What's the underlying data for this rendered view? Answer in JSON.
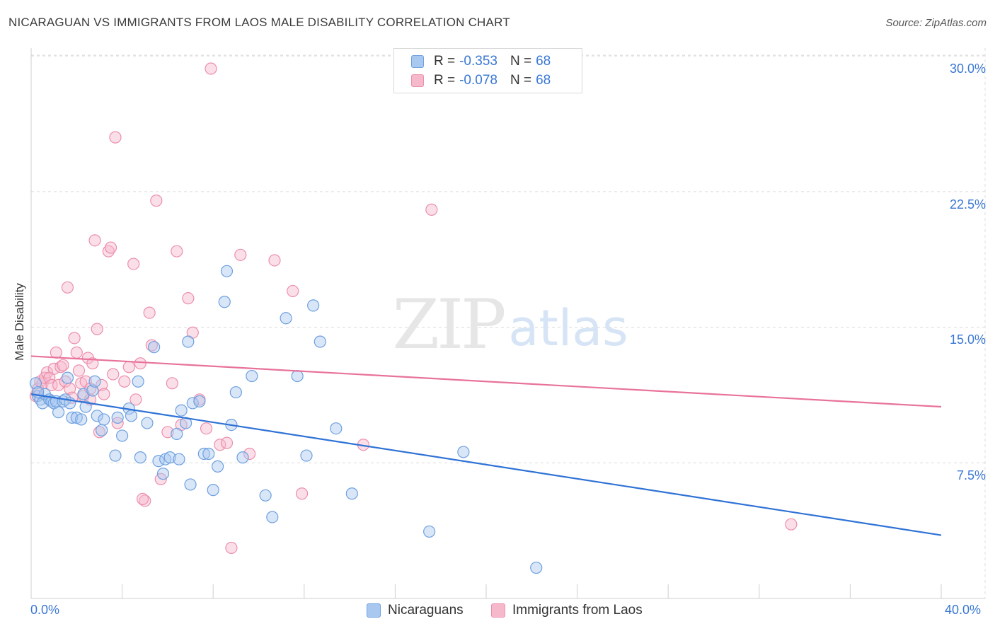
{
  "title": "NICARAGUAN VS IMMIGRANTS FROM LAOS MALE DISABILITY CORRELATION CHART",
  "source": "Source: ZipAtlas.com",
  "watermark": {
    "zip": "ZIP",
    "atlas": "atlas"
  },
  "colors": {
    "blue_fill": "#a9c8f0",
    "blue_stroke": "#6ea0e0",
    "blue_line": "#2f72d6",
    "pink_fill": "#f6b8cb",
    "pink_stroke": "#ec8fab",
    "pink_line": "#e8729a",
    "axis_text": "#3a78d4",
    "grid": "#dcdcdc"
  },
  "legend": {
    "series1": {
      "r_label": "R =",
      "r_value": "-0.353",
      "n_label": "N =",
      "n_value": "68"
    },
    "series2": {
      "r_label": "R =",
      "r_value": "-0.078",
      "n_label": "N =",
      "n_value": "68"
    }
  },
  "chart_data": {
    "type": "scatter",
    "title": "NICARAGUAN VS IMMIGRANTS FROM LAOS MALE DISABILITY CORRELATION CHART",
    "xlabel": "",
    "ylabel": "Male Disability",
    "xlim": [
      0,
      40
    ],
    "ylim": [
      0,
      31
    ],
    "x_tick_labels": [
      "0.0%",
      "40.0%"
    ],
    "y_ticks": [
      7.5,
      15.0,
      22.5,
      30.0
    ],
    "y_tick_labels": [
      "7.5%",
      "15.0%",
      "22.5%",
      "30.0%"
    ],
    "grid": true,
    "legend_position": "top-center",
    "series": [
      {
        "name": "Nicaraguans",
        "color": "blue",
        "trend": {
          "x": [
            0,
            40
          ],
          "y": [
            11.3,
            3.5
          ]
        },
        "points": [
          [
            0.2,
            11.9
          ],
          [
            0.3,
            11.2
          ],
          [
            0.4,
            11.0
          ],
          [
            0.5,
            10.8
          ],
          [
            0.6,
            11.3
          ],
          [
            0.8,
            11.0
          ],
          [
            0.9,
            10.9
          ],
          [
            1.0,
            10.8
          ],
          [
            1.1,
            10.9
          ],
          [
            1.2,
            10.3
          ],
          [
            1.4,
            10.9
          ],
          [
            1.5,
            11.0
          ],
          [
            1.6,
            12.2
          ],
          [
            1.7,
            10.8
          ],
          [
            1.8,
            10.0
          ],
          [
            2.0,
            10.0
          ],
          [
            2.3,
            11.3
          ],
          [
            2.4,
            10.6
          ],
          [
            2.7,
            11.5
          ],
          [
            2.8,
            12.0
          ],
          [
            2.9,
            10.1
          ],
          [
            3.1,
            9.3
          ],
          [
            3.2,
            9.9
          ],
          [
            3.7,
            7.9
          ],
          [
            3.8,
            10.0
          ],
          [
            4.3,
            10.5
          ],
          [
            4.4,
            10.1
          ],
          [
            4.7,
            12.0
          ],
          [
            4.8,
            7.8
          ],
          [
            5.1,
            9.7
          ],
          [
            5.4,
            13.9
          ],
          [
            5.6,
            7.6
          ],
          [
            5.8,
            6.9
          ],
          [
            5.9,
            7.7
          ],
          [
            6.1,
            7.8
          ],
          [
            6.4,
            9.1
          ],
          [
            6.6,
            10.4
          ],
          [
            6.8,
            9.7
          ],
          [
            6.9,
            14.2
          ],
          [
            7.0,
            6.3
          ],
          [
            7.1,
            10.8
          ],
          [
            7.4,
            10.9
          ],
          [
            7.6,
            8.0
          ],
          [
            7.8,
            8.0
          ],
          [
            8.0,
            6.0
          ],
          [
            8.2,
            7.3
          ],
          [
            8.5,
            16.4
          ],
          [
            8.6,
            18.1
          ],
          [
            8.8,
            9.6
          ],
          [
            9.0,
            11.4
          ],
          [
            9.3,
            7.8
          ],
          [
            9.7,
            12.3
          ],
          [
            10.3,
            5.7
          ],
          [
            10.6,
            4.5
          ],
          [
            11.2,
            15.5
          ],
          [
            11.7,
            12.3
          ],
          [
            12.1,
            7.9
          ],
          [
            12.4,
            16.2
          ],
          [
            12.7,
            14.2
          ],
          [
            13.4,
            9.4
          ],
          [
            14.1,
            5.8
          ],
          [
            17.5,
            3.7
          ],
          [
            19.0,
            8.1
          ],
          [
            22.2,
            1.7
          ],
          [
            0.3,
            11.4
          ],
          [
            2.2,
            9.9
          ],
          [
            4.0,
            9.0
          ],
          [
            6.5,
            7.7
          ]
        ]
      },
      {
        "name": "Immigrants from Laos",
        "color": "pink",
        "trend": {
          "x": [
            0,
            40
          ],
          "y": [
            13.4,
            10.6
          ]
        },
        "points": [
          [
            0.2,
            11.2
          ],
          [
            0.3,
            11.6
          ],
          [
            0.4,
            12.0
          ],
          [
            0.5,
            11.9
          ],
          [
            0.6,
            12.2
          ],
          [
            0.7,
            12.5
          ],
          [
            0.8,
            12.2
          ],
          [
            0.9,
            11.8
          ],
          [
            1.0,
            12.7
          ],
          [
            1.1,
            13.6
          ],
          [
            1.2,
            11.8
          ],
          [
            1.3,
            12.8
          ],
          [
            1.4,
            12.9
          ],
          [
            1.5,
            12.0
          ],
          [
            1.6,
            17.2
          ],
          [
            1.7,
            11.6
          ],
          [
            1.8,
            11.1
          ],
          [
            1.9,
            14.4
          ],
          [
            2.0,
            13.6
          ],
          [
            2.1,
            12.6
          ],
          [
            2.2,
            11.9
          ],
          [
            2.3,
            11.2
          ],
          [
            2.4,
            12.0
          ],
          [
            2.5,
            13.3
          ],
          [
            2.6,
            11.0
          ],
          [
            2.7,
            13.0
          ],
          [
            2.8,
            19.8
          ],
          [
            2.9,
            14.9
          ],
          [
            3.0,
            9.2
          ],
          [
            3.1,
            11.8
          ],
          [
            3.2,
            11.3
          ],
          [
            3.4,
            19.2
          ],
          [
            3.5,
            19.4
          ],
          [
            3.6,
            12.4
          ],
          [
            3.7,
            25.5
          ],
          [
            3.8,
            9.7
          ],
          [
            4.1,
            12.0
          ],
          [
            4.3,
            12.8
          ],
          [
            4.5,
            18.5
          ],
          [
            4.6,
            11.0
          ],
          [
            4.8,
            13.0
          ],
          [
            5.0,
            5.4
          ],
          [
            5.2,
            15.8
          ],
          [
            5.3,
            14.0
          ],
          [
            5.5,
            22.0
          ],
          [
            5.7,
            6.6
          ],
          [
            6.0,
            9.2
          ],
          [
            6.2,
            11.9
          ],
          [
            6.4,
            19.2
          ],
          [
            6.6,
            9.6
          ],
          [
            6.9,
            16.6
          ],
          [
            7.1,
            14.7
          ],
          [
            7.4,
            11.0
          ],
          [
            7.7,
            9.4
          ],
          [
            7.9,
            29.3
          ],
          [
            8.3,
            8.5
          ],
          [
            8.6,
            8.6
          ],
          [
            8.8,
            2.8
          ],
          [
            9.2,
            19.0
          ],
          [
            9.6,
            8.0
          ],
          [
            10.7,
            18.7
          ],
          [
            11.5,
            17.0
          ],
          [
            11.9,
            5.8
          ],
          [
            14.6,
            8.5
          ],
          [
            17.6,
            21.5
          ],
          [
            33.4,
            4.1
          ],
          [
            4.9,
            5.5
          ],
          [
            2.6,
            11.6
          ]
        ]
      }
    ]
  }
}
